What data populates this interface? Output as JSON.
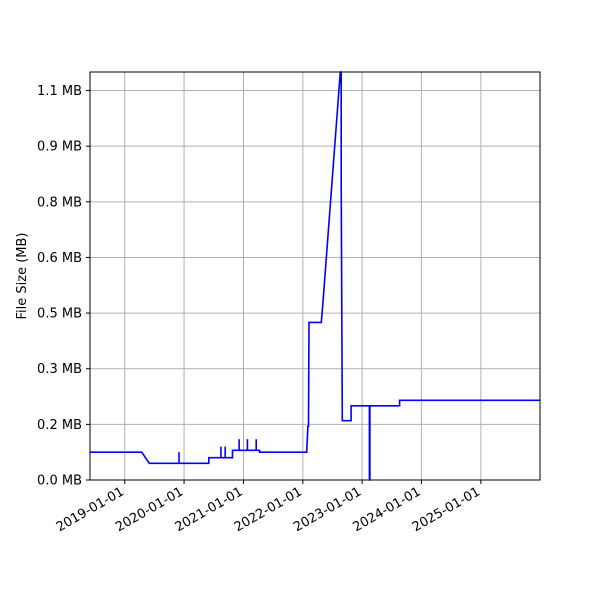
{
  "chart_data": {
    "type": "line",
    "xlabel": "",
    "ylabel": "File Size (MB)",
    "xlim": [
      "2018-06-01",
      "2025-12-31"
    ],
    "ylim": [
      0.0,
      1.1
    ],
    "x_ticks": [
      "2019-01-01",
      "2020-01-01",
      "2021-01-01",
      "2022-01-01",
      "2023-01-01",
      "2024-01-01",
      "2025-01-01"
    ],
    "y_ticks": [
      {
        "value": 0.0,
        "label": "0.0 MB"
      },
      {
        "value": 0.15,
        "label": "0.2 MB"
      },
      {
        "value": 0.3,
        "label": "0.3 MB"
      },
      {
        "value": 0.45,
        "label": "0.5 MB"
      },
      {
        "value": 0.6,
        "label": "0.6 MB"
      },
      {
        "value": 0.75,
        "label": "0.8 MB"
      },
      {
        "value": 0.9,
        "label": "0.9 MB"
      },
      {
        "value": 1.05,
        "label": "1.1 MB"
      }
    ],
    "grid": true,
    "line_color": "#0000ff",
    "series": [
      {
        "x": [
          "2018-06-01",
          "2019-04-15",
          "2019-06-01",
          "2020-06-01",
          "2020-06-01",
          "2020-10-25",
          "2020-10-25",
          "2021-04-10",
          "2021-04-10",
          "2022-01-25",
          "2022-02-01",
          "2022-02-05",
          "2022-02-08",
          "2022-04-25",
          "2022-05-05",
          "2022-08-20",
          "2022-08-25",
          "2022-08-25",
          "2022-09-01",
          "2022-10-25",
          "2022-10-25",
          "2023-02-15",
          "2023-02-15",
          "2023-02-18",
          "2023-02-18",
          "2023-08-20",
          "2023-08-20",
          "2025-12-31"
        ],
        "y": [
          0.075,
          0.075,
          0.045,
          0.045,
          0.06,
          0.06,
          0.08,
          0.08,
          0.075,
          0.075,
          0.145,
          0.145,
          0.425,
          0.425,
          0.48,
          1.1,
          1.1,
          0.8,
          0.16,
          0.16,
          0.2,
          0.2,
          0.0,
          0.0,
          0.2,
          0.2,
          0.215,
          0.215
        ]
      }
    ],
    "spikes": [
      {
        "x": "2019-12-01",
        "base": 0.045,
        "top": 0.075
      },
      {
        "x": "2020-08-15",
        "base": 0.06,
        "top": 0.09
      },
      {
        "x": "2020-09-10",
        "base": 0.06,
        "top": 0.09
      },
      {
        "x": "2020-12-05",
        "base": 0.08,
        "top": 0.11
      },
      {
        "x": "2021-01-25",
        "base": 0.08,
        "top": 0.11
      },
      {
        "x": "2021-03-20",
        "base": 0.08,
        "top": 0.11
      }
    ]
  }
}
